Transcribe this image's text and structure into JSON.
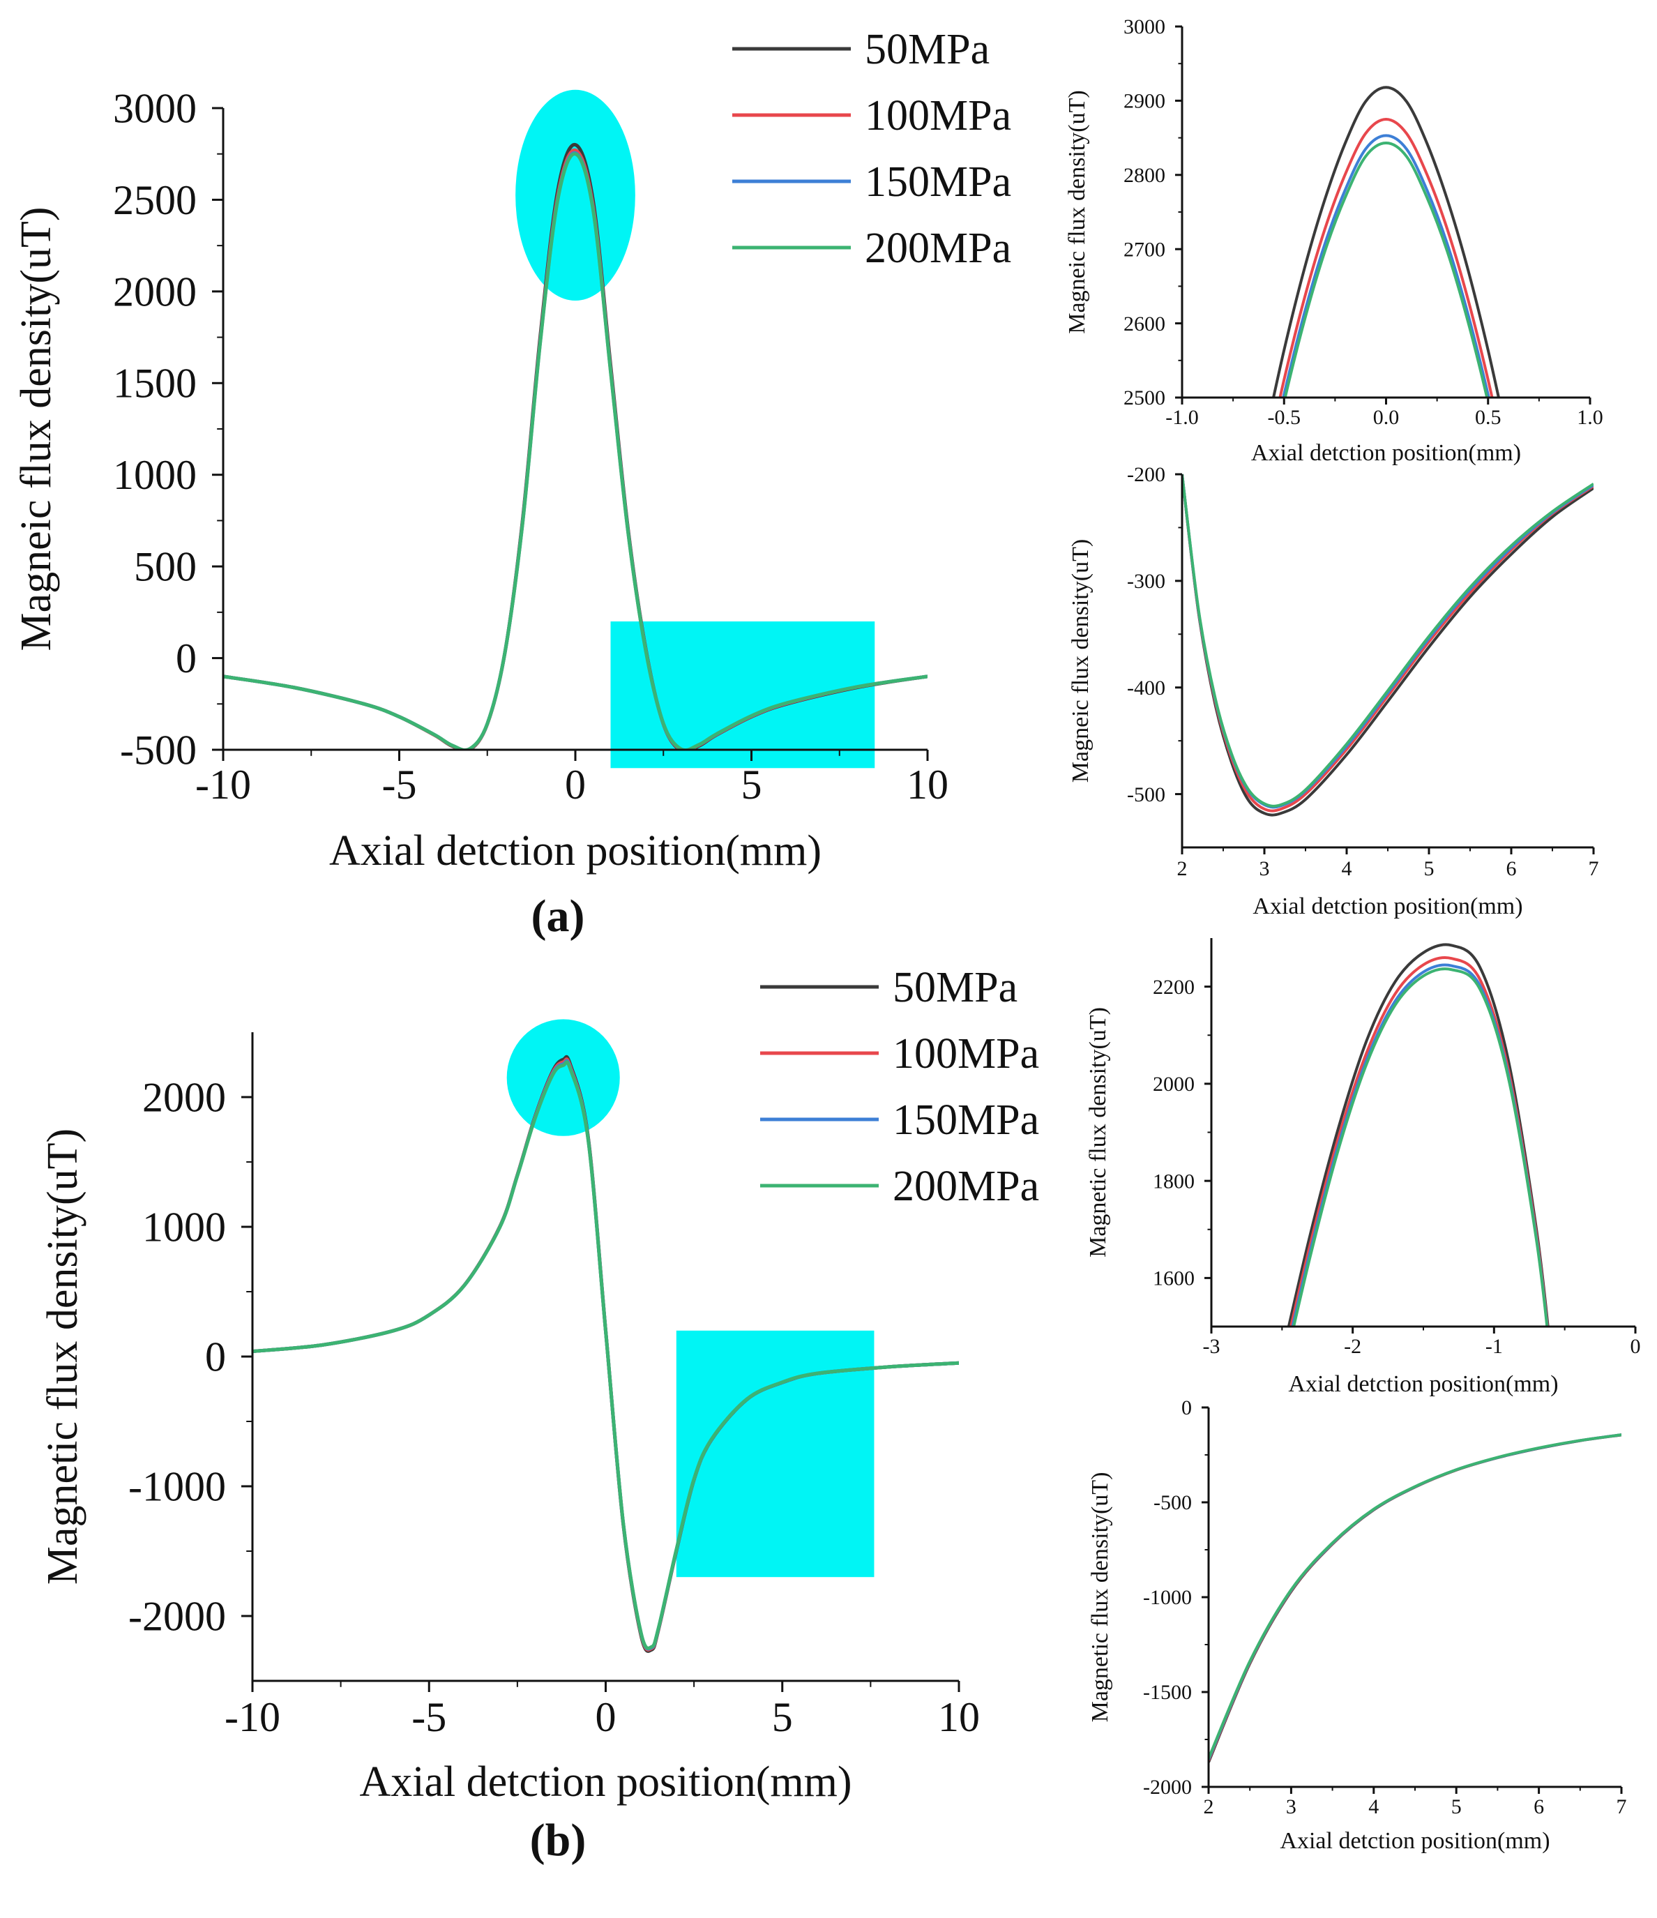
{
  "figure": {
    "panel_a_label": "(a)",
    "panel_b_label": "(b)"
  },
  "colors": {
    "axis": "#111111",
    "highlight": "#00f5f5",
    "series": [
      "#3a3a3a",
      "#e8474c",
      "#3d7fd6",
      "#3cb372"
    ]
  },
  "chart_data": [
    {
      "id": "a-main",
      "type": "line",
      "panel": "a",
      "title": "",
      "xlabel": "Axial detction position(mm)",
      "ylabel": "Magneic flux density(uT)",
      "xlim": [
        -10,
        10
      ],
      "ylim": [
        -500,
        3000
      ],
      "xticks": [
        -10,
        -5,
        0,
        5,
        10
      ],
      "yticks": [
        -500,
        0,
        500,
        1000,
        1500,
        2000,
        2500,
        3000
      ],
      "legend": {
        "position": "top-right",
        "labels": [
          "50MPa",
          "100MPa",
          "150MPa",
          "200MPa"
        ]
      },
      "highlights": [
        {
          "shape": "ellipse",
          "x": [
            -1.7,
            1.7
          ],
          "y": [
            1950,
            3100
          ]
        },
        {
          "shape": "rect",
          "x": [
            1,
            8.5
          ],
          "y": [
            -600,
            200
          ]
        }
      ],
      "x": [
        -10,
        -8,
        -6,
        -5,
        -4,
        -3.5,
        -3,
        -2.5,
        -2,
        -1.5,
        -1,
        -0.5,
        0,
        0.5,
        1,
        1.5,
        2,
        2.5,
        3,
        3.5,
        4,
        5,
        6,
        8,
        10
      ],
      "series": [
        {
          "name": "50MPa",
          "values": [
            -100,
            -160,
            -250,
            -320,
            -420,
            -480,
            -500,
            -360,
            30,
            750,
            1750,
            2550,
            2800,
            2500,
            1600,
            700,
            50,
            -360,
            -505,
            -480,
            -420,
            -320,
            -250,
            -160,
            -100
          ]
        },
        {
          "name": "100MPa",
          "values": [
            -100,
            -160,
            -250,
            -320,
            -420,
            -478,
            -498,
            -360,
            30,
            740,
            1730,
            2520,
            2770,
            2470,
            1580,
            690,
            45,
            -360,
            -500,
            -476,
            -418,
            -318,
            -248,
            -158,
            -100
          ]
        },
        {
          "name": "150MPa",
          "values": [
            -100,
            -160,
            -250,
            -320,
            -418,
            -476,
            -496,
            -358,
            30,
            735,
            1720,
            2505,
            2755,
            2455,
            1570,
            685,
            42,
            -358,
            -497,
            -474,
            -416,
            -316,
            -246,
            -157,
            -100
          ]
        },
        {
          "name": "200MPa",
          "values": [
            -100,
            -160,
            -250,
            -320,
            -418,
            -476,
            -495,
            -358,
            30,
            732,
            1715,
            2500,
            2750,
            2450,
            1565,
            682,
            40,
            -357,
            -496,
            -473,
            -415,
            -315,
            -245,
            -157,
            -100
          ]
        }
      ]
    },
    {
      "id": "a-inset-peak",
      "type": "line",
      "panel": "a",
      "title": "",
      "xlabel": "Axial detction position(mm)",
      "ylabel": "Magneic flux density(uT)",
      "xlim": [
        -1.0,
        1.0
      ],
      "ylim": [
        2500,
        3000
      ],
      "xticks": [
        "-1.0",
        "-0.5",
        "0.0",
        "0.5",
        "1.0"
      ],
      "yticks": [
        2500,
        2600,
        2700,
        2800,
        2900,
        3000
      ],
      "x": [
        -0.6,
        -0.5,
        -0.4,
        -0.3,
        -0.2,
        -0.1,
        0,
        0.1,
        0.2,
        0.3,
        0.4,
        0.5,
        0.6
      ],
      "series": [
        {
          "name": "50MPa",
          "values": [
            2439,
            2564,
            2674,
            2767,
            2843,
            2899,
            2918,
            2899,
            2843,
            2767,
            2674,
            2564,
            2439
          ]
        },
        {
          "name": "100MPa",
          "values": [
            2399,
            2524,
            2634,
            2727,
            2801,
            2856,
            2875,
            2856,
            2801,
            2727,
            2634,
            2524,
            2399
          ]
        },
        {
          "name": "150MPa",
          "values": [
            2379,
            2504,
            2614,
            2707,
            2780,
            2835,
            2853,
            2835,
            2780,
            2707,
            2614,
            2504,
            2379
          ]
        },
        {
          "name": "200MPa",
          "values": [
            2369,
            2494,
            2604,
            2697,
            2770,
            2825,
            2843,
            2825,
            2770,
            2697,
            2604,
            2494,
            2369
          ]
        }
      ]
    },
    {
      "id": "a-inset-valley",
      "type": "line",
      "panel": "a",
      "title": "",
      "xlabel": "Axial detction position(mm)",
      "ylabel": "Magneic flux density(uT)",
      "xlim": [
        2,
        7
      ],
      "ylim": [
        -550,
        -200
      ],
      "xticks": [
        2,
        3,
        4,
        5,
        6,
        7
      ],
      "yticks": [
        -500,
        -400,
        -300,
        -200
      ],
      "x": [
        2,
        2.2,
        2.4,
        2.6,
        2.8,
        3,
        3.2,
        3.5,
        4,
        4.5,
        5,
        5.5,
        6,
        6.5,
        7
      ],
      "series": [
        {
          "name": "50MPa",
          "values": [
            -200,
            -330,
            -415,
            -470,
            -505,
            -518,
            -518,
            -505,
            -463,
            -413,
            -362,
            -315,
            -275,
            -240,
            -213
          ]
        },
        {
          "name": "100MPa",
          "values": [
            -200,
            -329,
            -412,
            -466,
            -500,
            -514,
            -514,
            -500,
            -458,
            -408,
            -357,
            -311,
            -271,
            -237,
            -211
          ]
        },
        {
          "name": "150MPa",
          "values": [
            -200,
            -328,
            -410,
            -463,
            -496,
            -510,
            -511,
            -497,
            -455,
            -405,
            -354,
            -308,
            -269,
            -236,
            -210
          ]
        },
        {
          "name": "200MPa",
          "values": [
            -200,
            -327,
            -409,
            -462,
            -495,
            -509,
            -510,
            -496,
            -453,
            -403,
            -352,
            -306,
            -267,
            -235,
            -209
          ]
        }
      ]
    },
    {
      "id": "b-main",
      "type": "line",
      "panel": "b",
      "title": "",
      "xlabel": "Axial detction position(mm)",
      "ylabel": "Magnetic flux density(uT)",
      "xlim": [
        -10,
        10
      ],
      "ylim": [
        -2500,
        2500
      ],
      "xticks": [
        -10,
        -5,
        0,
        5,
        10
      ],
      "yticks": [
        -2000,
        -1000,
        0,
        1000,
        2000
      ],
      "legend": {
        "position": "top-right",
        "labels": [
          "50MPa",
          "100MPa",
          "150MPa",
          "200MPa"
        ]
      },
      "highlights": [
        {
          "shape": "ellipse",
          "x": [
            -2.8,
            0.4
          ],
          "y": [
            1700,
            2600
          ]
        },
        {
          "shape": "rect",
          "x": [
            2,
            7.6
          ],
          "y": [
            -1700,
            200
          ]
        }
      ],
      "x": [
        -10,
        -8,
        -6,
        -5,
        -4,
        -3,
        -2.5,
        -2,
        -1.5,
        -1.2,
        -1,
        -0.5,
        0,
        0.5,
        1,
        1.3,
        1.5,
        2,
        2.5,
        3,
        4,
        5,
        6,
        8,
        10
      ],
      "series": [
        {
          "name": "50MPa",
          "values": [
            40,
            90,
            200,
            320,
            550,
            1000,
            1400,
            1850,
            2200,
            2290,
            2250,
            1700,
            200,
            -1300,
            -2150,
            -2260,
            -2100,
            -1500,
            -950,
            -640,
            -330,
            -200,
            -130,
            -80,
            -50
          ]
        },
        {
          "name": "100MPa",
          "values": [
            40,
            90,
            200,
            320,
            550,
            998,
            1398,
            1845,
            2190,
            2270,
            2235,
            1690,
            198,
            -1295,
            -2140,
            -2250,
            -2095,
            -1495,
            -948,
            -638,
            -329,
            -199,
            -130,
            -80,
            -50
          ]
        },
        {
          "name": "150MPa",
          "values": [
            40,
            90,
            200,
            320,
            549,
            996,
            1395,
            1840,
            2180,
            2255,
            2225,
            1685,
            196,
            -1292,
            -2133,
            -2243,
            -2090,
            -1492,
            -946,
            -637,
            -328,
            -199,
            -129,
            -80,
            -50
          ]
        },
        {
          "name": "200MPa",
          "values": [
            40,
            90,
            200,
            320,
            549,
            995,
            1393,
            1836,
            2172,
            2245,
            2217,
            1680,
            195,
            -1290,
            -2130,
            -2238,
            -2087,
            -1490,
            -945,
            -636,
            -328,
            -198,
            -129,
            -80,
            -50
          ]
        }
      ]
    },
    {
      "id": "b-inset-peak",
      "type": "line",
      "panel": "b",
      "title": "",
      "xlabel": "Axial detction position(mm)",
      "ylabel": "Magnetic flux density(uT)",
      "xlim": [
        -3,
        0
      ],
      "ylim": [
        1500,
        2300
      ],
      "xticks": [
        -3,
        -2,
        -1,
        0
      ],
      "yticks": [
        1600,
        1800,
        2000,
        2200
      ],
      "x": [
        -2.5,
        -2.3,
        -2.1,
        -1.9,
        -1.7,
        -1.5,
        -1.3,
        -1.1,
        -0.9,
        -0.7,
        -0.6
      ],
      "series": [
        {
          "name": "50MPa",
          "values": [
            1440,
            1690,
            1910,
            2090,
            2210,
            2270,
            2285,
            2240,
            2050,
            1700,
            1450
          ]
        },
        {
          "name": "100MPa",
          "values": [
            1420,
            1670,
            1890,
            2065,
            2185,
            2245,
            2258,
            2215,
            2030,
            1690,
            1440
          ]
        },
        {
          "name": "150MPa",
          "values": [
            1405,
            1655,
            1875,
            2050,
            2170,
            2230,
            2243,
            2202,
            2020,
            1682,
            1435
          ]
        },
        {
          "name": "200MPa",
          "values": [
            1395,
            1645,
            1866,
            2042,
            2162,
            2222,
            2235,
            2195,
            2014,
            1678,
            1432
          ]
        }
      ]
    },
    {
      "id": "b-inset-tail",
      "type": "line",
      "panel": "b",
      "title": "",
      "xlabel": "Axial detction position(mm)",
      "ylabel": "Magnetic flux density(uT)",
      "xlim": [
        2,
        7
      ],
      "ylim": [
        -2000,
        0
      ],
      "xticks": [
        2,
        3,
        4,
        5,
        6,
        7
      ],
      "yticks": [
        -2000,
        -1500,
        -1000,
        -500,
        0
      ],
      "x": [
        2,
        2.5,
        3,
        3.5,
        4,
        4.5,
        5,
        5.5,
        6,
        6.5,
        7
      ],
      "series": [
        {
          "name": "50MPa",
          "values": [
            -1870,
            -1350,
            -970,
            -720,
            -540,
            -420,
            -330,
            -265,
            -215,
            -175,
            -145
          ]
        },
        {
          "name": "100MPa",
          "values": [
            -1862,
            -1345,
            -966,
            -718,
            -538,
            -419,
            -329,
            -264,
            -214,
            -174,
            -144
          ]
        },
        {
          "name": "150MPa",
          "values": [
            -1856,
            -1341,
            -963,
            -716,
            -537,
            -418,
            -328,
            -264,
            -214,
            -174,
            -144
          ]
        },
        {
          "name": "200MPa",
          "values": [
            -1850,
            -1338,
            -961,
            -714,
            -536,
            -417,
            -328,
            -263,
            -213,
            -174,
            -144
          ]
        }
      ]
    }
  ]
}
